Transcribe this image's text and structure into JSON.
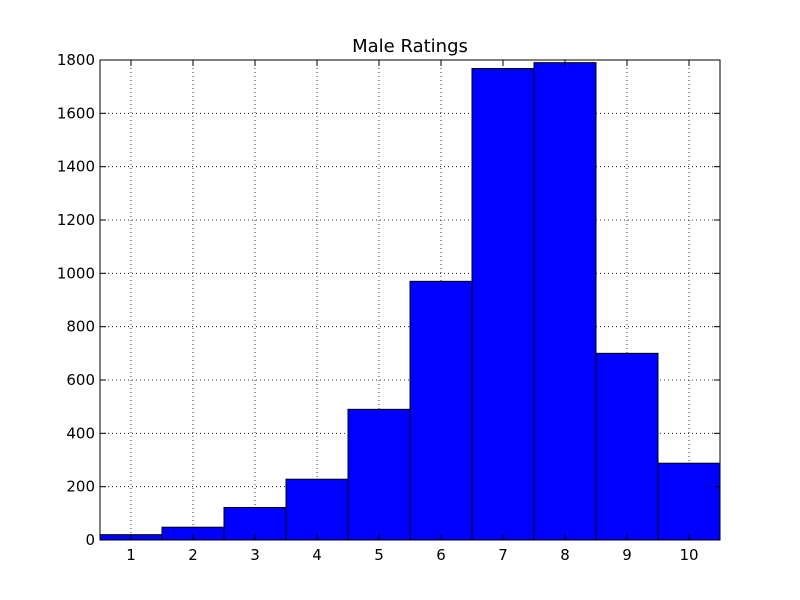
{
  "chart_data": {
    "type": "bar",
    "title": "Male Ratings",
    "xlabel": "",
    "ylabel": "",
    "categories": [
      "1",
      "2",
      "3",
      "4",
      "5",
      "6",
      "7",
      "8",
      "9",
      "10"
    ],
    "values": [
      20,
      48,
      122,
      228,
      490,
      970,
      1768,
      1790,
      700,
      288
    ],
    "xlim": [
      0.5,
      10.5
    ],
    "ylim": [
      0,
      1800
    ],
    "yticks": [
      0,
      200,
      400,
      600,
      800,
      1000,
      1200,
      1400,
      1600,
      1800
    ],
    "xticks": [
      1,
      2,
      3,
      4,
      5,
      6,
      7,
      8,
      9,
      10
    ],
    "grid": true,
    "bar_color": "#0000ff",
    "edge_color": "#000000"
  }
}
